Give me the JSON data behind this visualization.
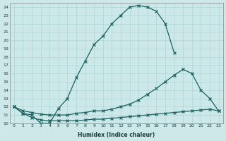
{
  "bg_color": "#cce8e8",
  "line_color": "#1a6060",
  "grid_color": "#afd4d4",
  "xlabel": "Humidex (Indice chaleur)",
  "xlim": [
    -0.5,
    23.5
  ],
  "ylim": [
    10,
    24.5
  ],
  "xticks": [
    0,
    1,
    2,
    3,
    4,
    5,
    6,
    7,
    8,
    9,
    10,
    11,
    12,
    13,
    14,
    15,
    16,
    17,
    18,
    19,
    20,
    21,
    22,
    23
  ],
  "yticks": [
    10,
    11,
    12,
    13,
    14,
    15,
    16,
    17,
    18,
    19,
    20,
    21,
    22,
    23,
    24
  ],
  "line1_x": [
    0,
    1,
    2,
    3,
    4,
    5,
    6,
    7,
    8,
    9,
    10,
    11,
    12,
    13,
    14,
    15,
    16,
    17,
    18
  ],
  "line1_y": [
    12,
    11.2,
    11.0,
    10.0,
    10.0,
    11.8,
    13.0,
    15.5,
    17.5,
    19.5,
    20.5,
    22.0,
    23.0,
    24.0,
    24.2,
    24.0,
    23.5,
    22.0,
    18.5
  ],
  "line2_x": [
    0,
    1,
    2,
    3,
    4,
    5,
    6,
    7,
    8,
    9,
    10,
    11,
    12,
    13,
    14,
    15,
    16,
    17,
    18,
    19,
    20,
    21,
    22,
    23
  ],
  "line2_y": [
    12,
    11.5,
    11.3,
    11.1,
    11.0,
    11.0,
    11.0,
    11.2,
    11.3,
    11.5,
    11.5,
    11.7,
    12.0,
    12.3,
    12.8,
    13.5,
    14.2,
    15.0,
    15.8,
    16.5,
    16.0,
    14.0,
    13.0,
    11.5
  ],
  "line3_x": [
    0,
    1,
    2,
    3,
    4,
    5,
    6,
    7,
    8,
    9,
    10,
    11,
    12,
    13,
    14,
    15,
    16,
    17,
    18,
    19,
    20,
    21,
    22,
    23
  ],
  "line3_y": [
    12,
    11.2,
    10.7,
    10.4,
    10.3,
    10.3,
    10.3,
    10.3,
    10.4,
    10.5,
    10.5,
    10.6,
    10.7,
    10.8,
    10.9,
    11.0,
    11.1,
    11.2,
    11.3,
    11.4,
    11.5,
    11.6,
    11.7,
    11.5
  ]
}
